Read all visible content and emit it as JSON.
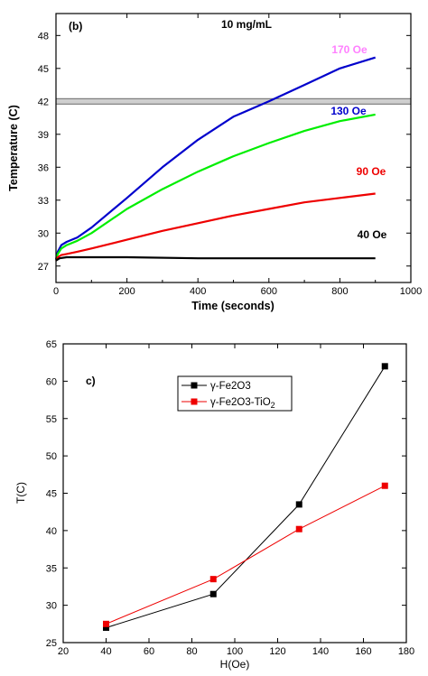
{
  "chart_data": [
    {
      "type": "line",
      "panel_label": "(b)",
      "title": "10 mg/mL",
      "xlabel": "Time (seconds)",
      "ylabel": "Temperature (C)",
      "xlim": [
        0,
        1000
      ],
      "ylim": [
        25.5,
        50
      ],
      "xticks": [
        0,
        200,
        400,
        600,
        800,
        1000
      ],
      "yticks": [
        27,
        30,
        33,
        36,
        39,
        42,
        45,
        48
      ],
      "grid": false,
      "reference_line": {
        "y": 42,
        "color": "#aaaaaa"
      },
      "series": [
        {
          "name": "170 Oe",
          "color": "#ff80ff",
          "x": [],
          "y": []
        },
        {
          "name": "130 Oe",
          "color": "#0000cc",
          "x": [
            0,
            5,
            15,
            30,
            60,
            100,
            200,
            300,
            400,
            500,
            600,
            700,
            800,
            900
          ],
          "y": [
            27.6,
            28.3,
            28.9,
            29.2,
            29.6,
            30.5,
            33.2,
            36.0,
            38.5,
            40.6,
            42.0,
            43.5,
            45.0,
            46.0
          ]
        },
        {
          "name": "",
          "color": "#00ee00",
          "x": [
            0,
            5,
            15,
            30,
            60,
            100,
            200,
            300,
            400,
            500,
            600,
            700,
            800,
            900
          ],
          "y": [
            27.6,
            28.1,
            28.6,
            28.9,
            29.3,
            30.0,
            32.2,
            34.0,
            35.6,
            37.0,
            38.2,
            39.3,
            40.2,
            40.8
          ]
        },
        {
          "name": "90 Oe",
          "color": "#ee0000",
          "x": [
            0,
            5,
            15,
            30,
            60,
            100,
            200,
            300,
            400,
            500,
            600,
            700,
            800,
            900
          ],
          "y": [
            27.5,
            27.8,
            28.0,
            28.1,
            28.3,
            28.6,
            29.4,
            30.2,
            30.9,
            31.6,
            32.2,
            32.8,
            33.2,
            33.6
          ]
        },
        {
          "name": "40 Oe",
          "color": "#000000",
          "x": [
            0,
            10,
            30,
            100,
            200,
            400,
            600,
            800,
            900
          ],
          "y": [
            27.5,
            27.7,
            27.8,
            27.8,
            27.8,
            27.7,
            27.7,
            27.7,
            27.7
          ]
        }
      ]
    },
    {
      "type": "scatter",
      "panel_label": "c)",
      "xlabel": "H(Oe)",
      "ylabel": "T(C)",
      "xlim": [
        20,
        180
      ],
      "ylim": [
        25,
        65
      ],
      "xticks": [
        20,
        40,
        60,
        80,
        100,
        120,
        140,
        160,
        180
      ],
      "yticks": [
        25,
        30,
        35,
        40,
        45,
        50,
        55,
        60,
        65
      ],
      "grid": false,
      "legend": "top-left",
      "series": [
        {
          "name": "γ-Fe2O3",
          "color": "#000000",
          "x": [
            40,
            90,
            130,
            170
          ],
          "y": [
            27.0,
            31.5,
            43.5,
            62.0
          ]
        },
        {
          "name": "γ-Fe2O3-TiO",
          "name_sub": "2",
          "color": "#ee0000",
          "x": [
            40,
            90,
            130,
            170
          ],
          "y": [
            27.5,
            33.5,
            40.2,
            46.0
          ]
        }
      ]
    }
  ]
}
